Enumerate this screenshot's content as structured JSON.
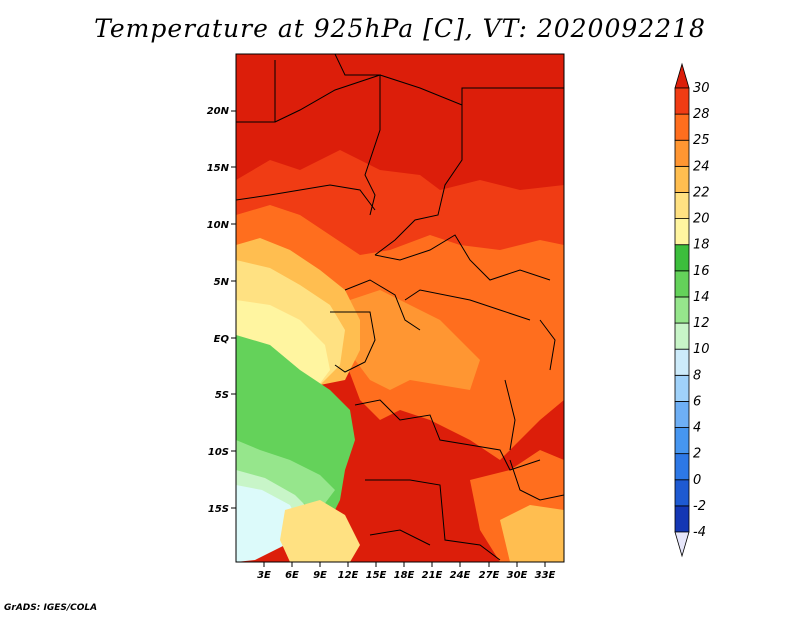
{
  "title": "Temperature at 925hPa [C], VT: 2020092218",
  "credit": "GrADS: IGES/COLA",
  "map": {
    "lon_ticks": [
      "3E",
      "6E",
      "9E",
      "12E",
      "15E",
      "18E",
      "21E",
      "24E",
      "27E",
      "30E",
      "33E"
    ],
    "lat_ticks": [
      "20N",
      "15N",
      "10N",
      "5N",
      "EQ",
      "5S",
      "10S",
      "15S"
    ]
  },
  "colorbar": {
    "levels": [
      "-4",
      "-2",
      "0",
      "2",
      "4",
      "6",
      "8",
      "10",
      "12",
      "14",
      "16",
      "18",
      "20",
      "22",
      "24",
      "25",
      "28",
      "30"
    ],
    "colors": [
      "#0f0f7a",
      "#1437b4",
      "#1e5ad2",
      "#2d78e6",
      "#4696f0",
      "#6eaff5",
      "#a0d2fa",
      "#cdebfa",
      "#c8f5c8",
      "#96e68c",
      "#64d25a",
      "#3cbe3c",
      "#fff5a0",
      "#ffe182",
      "#ffbe50",
      "#ff9632",
      "#ff6e1e",
      "#f03c14",
      "#dc1e0a"
    ]
  },
  "colors": {
    "hot": "#dc1e0a",
    "warm": "#f03c14",
    "orange": "#ff6e1e",
    "amber": "#ff9632",
    "gold": "#ffbe50",
    "yellow": "#ffe182",
    "pale": "#fff5a0",
    "green": "#64d25a",
    "lightgreen": "#96e68c",
    "mint": "#c8f5c8",
    "cyan": "#dcfafa"
  }
}
